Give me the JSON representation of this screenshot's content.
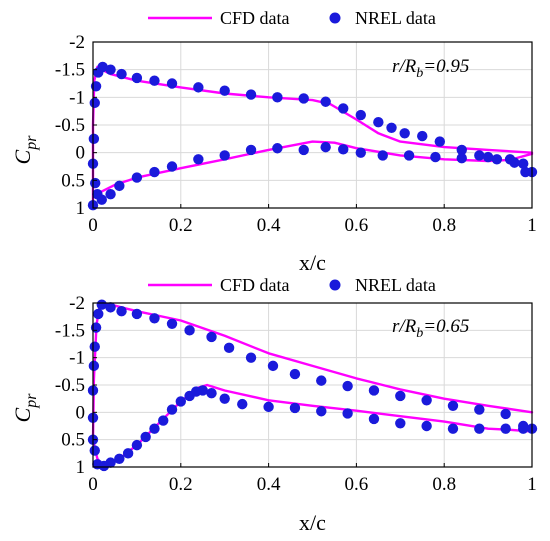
{
  "chart_data": [
    {
      "type": "line",
      "annotation": {
        "main": "r/R",
        "sub": "b",
        "value": "=0.95"
      },
      "xlabel": "x/c",
      "ylabel": {
        "main": "C",
        "sub": "pr"
      },
      "xlim": [
        0,
        1
      ],
      "ylim": [
        -2,
        1
      ],
      "y_reversed": true,
      "xticks": [
        0,
        0.2,
        0.4,
        0.6,
        0.8,
        1
      ],
      "xtick_labels": [
        "0",
        "0.2",
        "0.4",
        "0.6",
        "0.8",
        "1"
      ],
      "yticks": [
        -2,
        -1.5,
        -1,
        -0.5,
        0,
        0.5,
        1
      ],
      "ytick_labels": [
        "-2",
        "-1.5",
        "-1",
        "-0.5",
        "0",
        "0.5",
        "1"
      ],
      "grid": true,
      "legend": {
        "placement": "above",
        "entries": [
          "CFD data",
          "NREL data"
        ]
      },
      "series": [
        {
          "name": "CFD data",
          "kind": "line",
          "color": "#ff00ff",
          "segments": [
            {
              "x": [
                0.0,
                0.0,
                0.003,
                0.01,
                0.02,
                0.04,
                0.1,
                0.2,
                0.3,
                0.4,
                0.5,
                0.54,
                0.6,
                0.65,
                0.7,
                0.8,
                0.9,
                1.0
              ],
              "y": [
                0.9,
                -0.5,
                -1.3,
                -1.55,
                -1.5,
                -1.42,
                -1.3,
                -1.18,
                -1.07,
                -1.0,
                -0.95,
                -0.88,
                -0.6,
                -0.35,
                -0.2,
                -0.1,
                -0.05,
                0.0
              ]
            },
            {
              "x": [
                0.003,
                0.02,
                0.05,
                0.1,
                0.2,
                0.3,
                0.4,
                0.5,
                0.55,
                0.6,
                0.7,
                0.8,
                0.9,
                0.95,
                1.0
              ],
              "y": [
                0.8,
                0.7,
                0.58,
                0.45,
                0.28,
                0.12,
                -0.05,
                -0.2,
                -0.18,
                -0.08,
                0.05,
                0.12,
                0.15,
                0.13,
                0.02
              ]
            }
          ]
        },
        {
          "name": "NREL data",
          "kind": "scatter",
          "color": "#1a1adb",
          "segments": [
            {
              "x": [
                0.0,
                0.0,
                0.002,
                0.004,
                0.007,
                0.012,
                0.022,
                0.04,
                0.065,
                0.1,
                0.14,
                0.18,
                0.24,
                0.3,
                0.36,
                0.42,
                0.48,
                0.53,
                0.57,
                0.61,
                0.65,
                0.68,
                0.71,
                0.75,
                0.79,
                0.84,
                0.88,
                0.92,
                0.96,
                0.985
              ],
              "y": [
                0.95,
                0.2,
                -0.25,
                -0.9,
                -1.2,
                -1.45,
                -1.55,
                -1.5,
                -1.42,
                -1.35,
                -1.3,
                -1.25,
                -1.18,
                -1.12,
                -1.05,
                -1.0,
                -0.98,
                -0.92,
                -0.8,
                -0.68,
                -0.55,
                -0.45,
                -0.35,
                -0.3,
                -0.2,
                -0.05,
                0.05,
                0.12,
                0.18,
                0.35
              ]
            },
            {
              "x": [
                0.005,
                0.01,
                0.02,
                0.04,
                0.06,
                0.1,
                0.14,
                0.18,
                0.24,
                0.3,
                0.36,
                0.42,
                0.48,
                0.53,
                0.57,
                0.61,
                0.66,
                0.72,
                0.78,
                0.84,
                0.9,
                0.95,
                0.98,
                1.0
              ],
              "y": [
                0.55,
                0.75,
                0.85,
                0.75,
                0.6,
                0.45,
                0.35,
                0.25,
                0.12,
                0.05,
                -0.05,
                -0.08,
                -0.05,
                -0.1,
                -0.06,
                0.0,
                0.05,
                0.05,
                0.08,
                0.1,
                0.08,
                0.12,
                0.2,
                0.35
              ]
            }
          ]
        }
      ]
    },
    {
      "type": "line",
      "annotation": {
        "main": "r/R",
        "sub": "b",
        "value": "=0.65"
      },
      "xlabel": "x/c",
      "ylabel": {
        "main": "C",
        "sub": "pr"
      },
      "xlim": [
        0,
        1
      ],
      "ylim": [
        -2,
        1
      ],
      "y_reversed": true,
      "xticks": [
        0,
        0.2,
        0.4,
        0.6,
        0.8,
        1
      ],
      "xtick_labels": [
        "0",
        "0.2",
        "0.4",
        "0.6",
        "0.8",
        "1"
      ],
      "yticks": [
        -2,
        -1.5,
        -1,
        -0.5,
        0,
        0.5,
        1
      ],
      "ytick_labels": [
        "-2",
        "-1.5",
        "-1",
        "-0.5",
        "0",
        "0.5",
        "1"
      ],
      "grid": true,
      "legend": {
        "placement": "above",
        "entries": [
          "CFD data",
          "NREL data"
        ]
      },
      "series": [
        {
          "name": "CFD data",
          "kind": "line",
          "color": "#ff00ff",
          "segments": [
            {
              "x": [
                0.0,
                0.002,
                0.008,
                0.015,
                0.025,
                0.05,
                0.1,
                0.2,
                0.3,
                0.4,
                0.5,
                0.6,
                0.7,
                0.8,
                0.9,
                1.0
              ],
              "y": [
                0.5,
                -0.6,
                -1.6,
                -1.95,
                -2.0,
                -1.95,
                -1.85,
                -1.68,
                -1.4,
                -1.08,
                -0.85,
                -0.62,
                -0.42,
                -0.25,
                -0.12,
                0.0
              ]
            },
            {
              "x": [
                0.0,
                0.01,
                0.02,
                0.03,
                0.06,
                0.1,
                0.15,
                0.2,
                0.24,
                0.26,
                0.3,
                0.4,
                0.5,
                0.6,
                0.7,
                0.8,
                0.9,
                0.95,
                1.0
              ],
              "y": [
                0.5,
                0.85,
                0.95,
                0.95,
                0.85,
                0.6,
                0.2,
                -0.2,
                -0.45,
                -0.5,
                -0.4,
                -0.22,
                -0.12,
                -0.03,
                0.07,
                0.17,
                0.3,
                0.32,
                0.35
              ]
            }
          ]
        },
        {
          "name": "NREL data",
          "kind": "scatter",
          "color": "#1a1adb",
          "segments": [
            {
              "x": [
                0.0,
                0.0,
                0.0,
                0.002,
                0.004,
                0.007,
                0.012,
                0.02,
                0.04,
                0.065,
                0.1,
                0.14,
                0.18,
                0.22,
                0.27,
                0.31,
                0.36,
                0.41,
                0.46,
                0.52,
                0.58,
                0.64,
                0.7,
                0.76,
                0.82,
                0.88,
                0.94,
                0.98
              ],
              "y": [
                0.5,
                0.1,
                -0.4,
                -0.85,
                -1.2,
                -1.55,
                -1.8,
                -1.97,
                -1.92,
                -1.85,
                -1.8,
                -1.72,
                -1.62,
                -1.5,
                -1.38,
                -1.18,
                -1.0,
                -0.85,
                -0.7,
                -0.58,
                -0.48,
                -0.4,
                -0.3,
                -0.22,
                -0.12,
                -0.05,
                0.03,
                0.25
              ]
            },
            {
              "x": [
                0.004,
                0.01,
                0.025,
                0.04,
                0.06,
                0.08,
                0.1,
                0.12,
                0.14,
                0.16,
                0.18,
                0.2,
                0.22,
                0.235,
                0.25,
                0.27,
                0.3,
                0.34,
                0.4,
                0.46,
                0.52,
                0.58,
                0.64,
                0.7,
                0.76,
                0.82,
                0.88,
                0.94,
                0.98,
                1.0
              ],
              "y": [
                0.7,
                0.95,
                0.98,
                0.92,
                0.85,
                0.75,
                0.6,
                0.45,
                0.3,
                0.15,
                -0.05,
                -0.2,
                -0.3,
                -0.38,
                -0.4,
                -0.35,
                -0.25,
                -0.15,
                -0.1,
                -0.08,
                -0.02,
                0.02,
                0.12,
                0.2,
                0.25,
                0.3,
                0.3,
                0.3,
                0.3,
                0.3
              ]
            }
          ]
        }
      ]
    }
  ]
}
